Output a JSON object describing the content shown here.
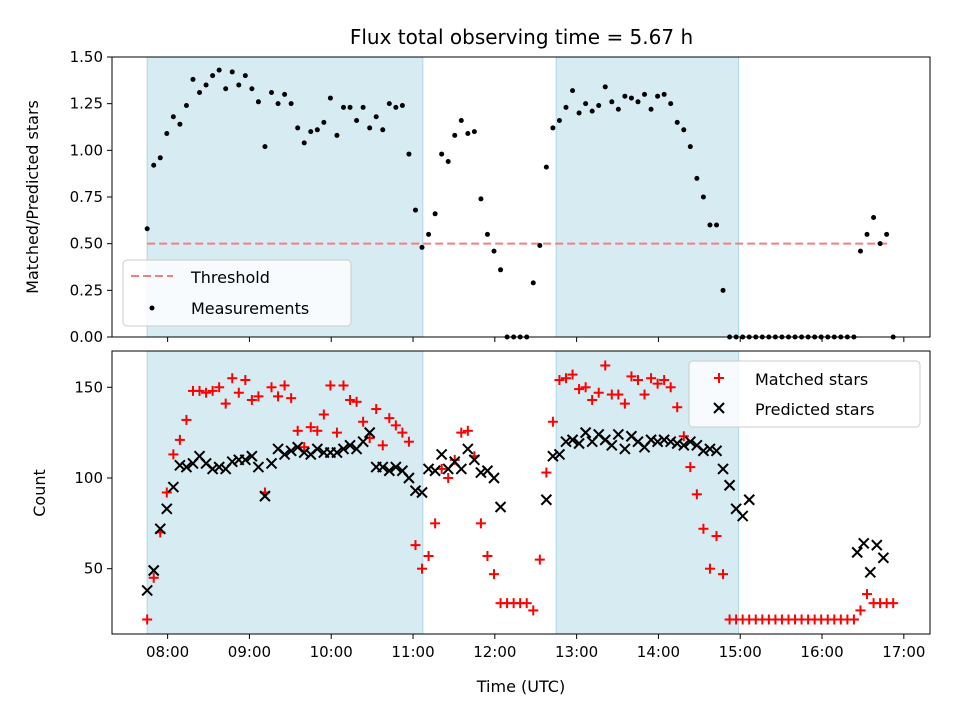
{
  "chart_data": [
    {
      "type": "scatter",
      "title": "Flux total observing time = 5.67 h",
      "xlabel": "",
      "ylabel": "Matched/Predicted stars",
      "xlim": [
        7.32,
        17.32
      ],
      "ylim": [
        0,
        1.5
      ],
      "yticks": [
        0,
        0.25,
        0.5,
        0.75,
        1.0,
        1.25,
        1.5
      ],
      "ytick_labels": [
        "0.00",
        "0.25",
        "0.50",
        "0.75",
        "1.00",
        "1.25",
        "1.50"
      ],
      "xticks": [
        8,
        9,
        10,
        11,
        12,
        13,
        14,
        15,
        16,
        17
      ],
      "shaded_intervals": [
        [
          7.75,
          11.12
        ],
        [
          12.75,
          14.98
        ]
      ],
      "threshold": {
        "name": "Threshold",
        "value": 0.5,
        "x_range": [
          7.75,
          16.8
        ],
        "color": "#f08080"
      },
      "legend_position": "lower-left",
      "series": [
        {
          "name": "Measurements",
          "color": "#000000",
          "marker": "dot",
          "x": [
            7.75,
            7.83,
            7.91,
            7.99,
            8.07,
            8.15,
            8.23,
            8.31,
            8.39,
            8.47,
            8.55,
            8.63,
            8.71,
            8.79,
            8.87,
            8.95,
            9.03,
            9.11,
            9.19,
            9.27,
            9.35,
            9.43,
            9.51,
            9.59,
            9.67,
            9.75,
            9.83,
            9.91,
            9.99,
            10.07,
            10.15,
            10.23,
            10.31,
            10.39,
            10.47,
            10.55,
            10.63,
            10.71,
            10.79,
            10.87,
            10.95,
            11.03,
            11.11,
            11.19,
            11.27,
            11.35,
            11.43,
            11.51,
            11.59,
            11.67,
            11.75,
            11.83,
            11.91,
            11.99,
            12.07,
            12.15,
            12.23,
            12.31,
            12.39,
            12.47,
            12.55,
            12.63,
            12.71,
            12.79,
            12.87,
            12.95,
            13.03,
            13.11,
            13.19,
            13.27,
            13.35,
            13.43,
            13.51,
            13.59,
            13.67,
            13.75,
            13.83,
            13.91,
            13.99,
            14.07,
            14.15,
            14.23,
            14.31,
            14.39,
            14.47,
            14.55,
            14.63,
            14.71,
            14.79,
            14.87,
            14.95,
            15.03,
            15.11,
            15.19,
            15.27,
            15.35,
            15.43,
            15.51,
            15.59,
            15.67,
            15.75,
            15.83,
            15.91,
            15.99,
            16.07,
            16.15,
            16.23,
            16.31,
            16.39,
            16.47,
            16.55,
            16.63,
            16.71,
            16.79,
            16.87
          ],
          "values": [
            0.58,
            0.92,
            0.96,
            1.09,
            1.18,
            1.14,
            1.24,
            1.38,
            1.31,
            1.35,
            1.4,
            1.43,
            1.33,
            1.42,
            1.35,
            1.4,
            1.33,
            1.26,
            1.02,
            1.31,
            1.25,
            1.3,
            1.25,
            1.12,
            1.04,
            1.1,
            1.11,
            1.15,
            1.28,
            1.08,
            1.23,
            1.23,
            1.16,
            1.23,
            1.12,
            1.18,
            1.11,
            1.25,
            1.23,
            1.24,
            0.98,
            0.68,
            0.48,
            0.55,
            0.66,
            0.98,
            0.94,
            1.08,
            1.16,
            1.09,
            1.1,
            0.74,
            0.55,
            0.46,
            0.36,
            0.0,
            0.0,
            0.0,
            0.0,
            0.29,
            0.49,
            0.91,
            1.12,
            1.16,
            1.23,
            1.32,
            1.2,
            1.25,
            1.21,
            1.24,
            1.34,
            1.26,
            1.22,
            1.29,
            1.28,
            1.26,
            1.3,
            1.22,
            1.29,
            1.3,
            1.25,
            1.15,
            1.11,
            1.02,
            0.85,
            0.75,
            0.6,
            0.6,
            0.25,
            0.0,
            0.0,
            0.0,
            0.0,
            0.0,
            0.0,
            0.0,
            0.0,
            0.0,
            0.0,
            0.0,
            0.0,
            0.0,
            0.0,
            0.0,
            0.0,
            0.0,
            0.0,
            0.0,
            0.0,
            0.46,
            0.55,
            0.64,
            0.5,
            0.55,
            0.0
          ]
        }
      ]
    },
    {
      "type": "scatter",
      "title": "",
      "xlabel": "Time (UTC)",
      "ylabel": "Count",
      "xlim": [
        7.32,
        17.32
      ],
      "ylim": [
        14,
        170
      ],
      "yticks": [
        50,
        100,
        150
      ],
      "ytick_labels": [
        "50",
        "100",
        "150"
      ],
      "xticks": [
        8,
        9,
        10,
        11,
        12,
        13,
        14,
        15,
        16,
        17
      ],
      "xtick_labels": [
        "08:00",
        "09:00",
        "10:00",
        "11:00",
        "12:00",
        "13:00",
        "14:00",
        "15:00",
        "16:00",
        "17:00"
      ],
      "shaded_intervals": [
        [
          7.75,
          11.12
        ],
        [
          12.75,
          14.98
        ]
      ],
      "legend_position": "upper-right",
      "series": [
        {
          "name": "Matched stars",
          "color": "#ff0000",
          "marker": "plus",
          "x": [
            7.75,
            7.83,
            7.91,
            7.99,
            8.07,
            8.15,
            8.23,
            8.31,
            8.39,
            8.47,
            8.55,
            8.63,
            8.71,
            8.79,
            8.87,
            8.95,
            9.03,
            9.11,
            9.19,
            9.27,
            9.35,
            9.43,
            9.51,
            9.59,
            9.67,
            9.75,
            9.83,
            9.91,
            9.99,
            10.07,
            10.15,
            10.23,
            10.31,
            10.39,
            10.47,
            10.55,
            10.63,
            10.71,
            10.79,
            10.87,
            10.95,
            11.03,
            11.11,
            11.19,
            11.27,
            11.35,
            11.43,
            11.51,
            11.59,
            11.67,
            11.75,
            11.83,
            11.91,
            11.99,
            12.07,
            12.15,
            12.23,
            12.31,
            12.39,
            12.47,
            12.55,
            12.63,
            12.71,
            12.79,
            12.87,
            12.95,
            13.03,
            13.11,
            13.19,
            13.27,
            13.35,
            13.43,
            13.51,
            13.59,
            13.67,
            13.75,
            13.83,
            13.91,
            13.99,
            14.07,
            14.15,
            14.23,
            14.31,
            14.39,
            14.47,
            14.55,
            14.63,
            14.71,
            14.79,
            14.87,
            14.95,
            15.03,
            15.11,
            15.19,
            15.27,
            15.35,
            15.43,
            15.51,
            15.59,
            15.67,
            15.75,
            15.83,
            15.91,
            15.99,
            16.07,
            16.15,
            16.23,
            16.31,
            16.39,
            16.47,
            16.55,
            16.63,
            16.71,
            16.79,
            16.87
          ],
          "values": [
            22,
            45,
            70,
            92,
            113,
            121,
            132,
            148,
            148,
            147,
            148,
            150,
            141,
            155,
            147,
            154,
            143,
            145,
            92,
            150,
            145,
            151,
            144,
            126,
            117,
            128,
            126,
            135,
            151,
            125,
            151,
            143,
            142,
            131,
            122,
            138,
            118,
            133,
            129,
            125,
            120,
            63,
            50,
            57,
            75,
            105,
            100,
            110,
            125,
            126,
            112,
            75,
            57,
            47,
            31,
            31,
            31,
            31,
            31,
            27,
            55,
            103,
            131,
            154,
            155,
            157,
            149,
            150,
            143,
            147,
            162,
            146,
            146,
            141,
            156,
            154,
            146,
            155,
            152,
            154,
            150,
            139,
            123,
            106,
            91,
            72,
            50,
            68,
            47,
            22,
            22,
            22,
            22,
            22,
            22,
            22,
            22,
            22,
            22,
            22,
            22,
            22,
            22,
            22,
            22,
            22,
            22,
            22,
            22,
            27,
            36,
            31,
            31,
            31,
            31
          ]
        },
        {
          "name": "Predicted stars",
          "color": "#000000",
          "marker": "x",
          "x": [
            7.75,
            7.83,
            7.91,
            7.99,
            8.07,
            8.15,
            8.23,
            8.31,
            8.39,
            8.47,
            8.55,
            8.63,
            8.71,
            8.79,
            8.87,
            8.95,
            9.03,
            9.11,
            9.19,
            9.27,
            9.35,
            9.43,
            9.51,
            9.59,
            9.67,
            9.75,
            9.83,
            9.91,
            9.99,
            10.07,
            10.15,
            10.23,
            10.31,
            10.39,
            10.47,
            10.55,
            10.63,
            10.71,
            10.79,
            10.87,
            10.95,
            11.03,
            11.11,
            11.19,
            11.27,
            11.35,
            11.43,
            11.51,
            11.59,
            11.67,
            11.75,
            11.83,
            11.91,
            11.99,
            12.07,
            12.63,
            12.71,
            12.79,
            12.87,
            12.95,
            13.03,
            13.11,
            13.19,
            13.27,
            13.35,
            13.43,
            13.51,
            13.59,
            13.67,
            13.75,
            13.83,
            13.91,
            13.99,
            14.07,
            14.15,
            14.23,
            14.31,
            14.39,
            14.47,
            14.55,
            14.63,
            14.71,
            14.79,
            14.87,
            14.95,
            15.03,
            15.11,
            16.43,
            16.51,
            16.59,
            16.67,
            16.75
          ],
          "values": [
            38,
            49,
            72,
            83,
            95,
            107,
            106,
            108,
            112,
            108,
            105,
            106,
            105,
            109,
            110,
            110,
            112,
            106,
            90,
            108,
            116,
            113,
            115,
            117,
            114,
            113,
            116,
            114,
            114,
            114,
            116,
            118,
            116,
            120,
            125,
            106,
            106,
            104,
            106,
            104,
            100,
            93,
            92,
            105,
            104,
            113,
            105,
            109,
            105,
            116,
            110,
            103,
            104,
            100,
            84,
            88,
            112,
            113,
            120,
            121,
            119,
            125,
            120,
            124,
            121,
            118,
            124,
            116,
            123,
            120,
            117,
            121,
            120,
            121,
            120,
            119,
            118,
            120,
            118,
            115,
            116,
            115,
            105,
            96,
            83,
            79,
            88,
            59,
            64,
            48,
            63,
            56
          ]
        }
      ]
    }
  ]
}
